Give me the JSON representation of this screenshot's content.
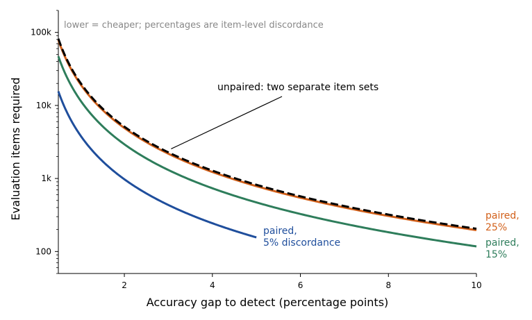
{
  "chart_data": {
    "type": "line",
    "title": "",
    "xlabel": "Accuracy gap to detect (percentage points)",
    "ylabel": "Evaluation items required",
    "xscale": "linear",
    "yscale": "log",
    "xlim": [
      0.5,
      10
    ],
    "ylim": [
      50,
      200000
    ],
    "x_ticks": [
      2,
      4,
      6,
      8,
      10
    ],
    "x_tick_labels": [
      "2",
      "4",
      "6",
      "8",
      "10"
    ],
    "y_ticks": [
      100,
      1000,
      10000,
      100000
    ],
    "y_tick_labels": [
      "100",
      "1k",
      "10k",
      "100k"
    ],
    "grid": false,
    "note": "lower = cheaper; percentages are item-level discordance",
    "annotation": {
      "text": "unpaired: two separate item sets",
      "points_to": [
        3.0,
        2600
      ]
    },
    "series": [
      {
        "label": "paired,\n5% discordance",
        "label_lines": [
          "paired,",
          "5% discordance"
        ],
        "color": "#1f4e9c",
        "dash": "solid",
        "x_start": 0.5,
        "x_end": 5,
        "y_at_x_start": 15600,
        "exponent": -2
      },
      {
        "label": "paired,\n15%",
        "label_lines": [
          "paired,",
          "15%"
        ],
        "color": "#2e7d5b",
        "dash": "solid",
        "x_start": 0.5,
        "x_end": 10,
        "y_at_x_start": 47000,
        "exponent": -2
      },
      {
        "label": "paired,\n25%",
        "label_lines": [
          "paired,",
          "25%"
        ],
        "color": "#d2601a",
        "dash": "solid",
        "x_start": 0.5,
        "x_end": 10,
        "y_at_x_start": 78500,
        "exponent": -2
      },
      {
        "label": "unpaired",
        "label_lines": [],
        "color": "#000000",
        "dash": "dashed",
        "x_start": 0.5,
        "x_end": 10,
        "y_at_x_start": 82000,
        "exponent": -2
      }
    ]
  }
}
